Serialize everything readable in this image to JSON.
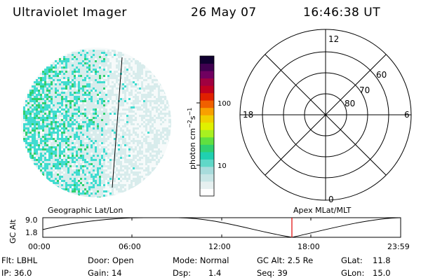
{
  "header": {
    "instrument": "Ultraviolet Imager",
    "date": "26 May 07",
    "time": "16:46:38 UT"
  },
  "colorbar": {
    "label_html": "photon cm<tspan dy=\"-5\" font-size=\"8\">−2</tspan><tspan dy=\"5\">s</tspan><tspan dy=\"-5\" font-size=\"8\">−1</tspan>",
    "ticks": [
      "100",
      "10"
    ],
    "colors": [
      "#ffffff",
      "#e6f0f0",
      "#c8e6e6",
      "#a8dcdc",
      "#60d8c8",
      "#20d0b0",
      "#30d070",
      "#60e040",
      "#a8f020",
      "#e0f000",
      "#f0d000",
      "#f8a000",
      "#f06000",
      "#e02000",
      "#c00020",
      "#a00040",
      "#700060",
      "#400050",
      "#100030"
    ]
  },
  "polar_plot": {
    "mlt_labels": {
      "top": "12",
      "left": "18",
      "right": "6",
      "bottom": "0"
    },
    "lat_labels": [
      "60",
      "70",
      "80"
    ]
  },
  "timeline": {
    "left_caption": "Geographic Lat/Lon",
    "right_caption": "Apex MLat/MLT",
    "yaxis_title": "GC Alt",
    "ytick_top": "9.0",
    "ytick_bottom": "1.8",
    "xticks": [
      "00:00",
      "06:00",
      "12:00",
      "18:00",
      "23:59"
    ],
    "marker_color": "#e00000"
  },
  "info": {
    "filter": "Flt: LBHL",
    "door": "Door: Open",
    "mode": "Mode: Normal",
    "gc_alt": "GC Alt: 2.5 Re",
    "glat_label": "GLat:",
    "glat_value": "11.8",
    "ip": "IP: 36.0",
    "gain": "Gain: 14",
    "dsp_label": "Dsp:",
    "dsp_value": "1.4",
    "seq": "Seq: 39",
    "glon_label": "GLon:",
    "glon_value": "15.0"
  },
  "image_colors": {
    "dot_light": "#d8ecec",
    "dot_cyan": "#40dcd0",
    "dot_green": "#30d070"
  }
}
